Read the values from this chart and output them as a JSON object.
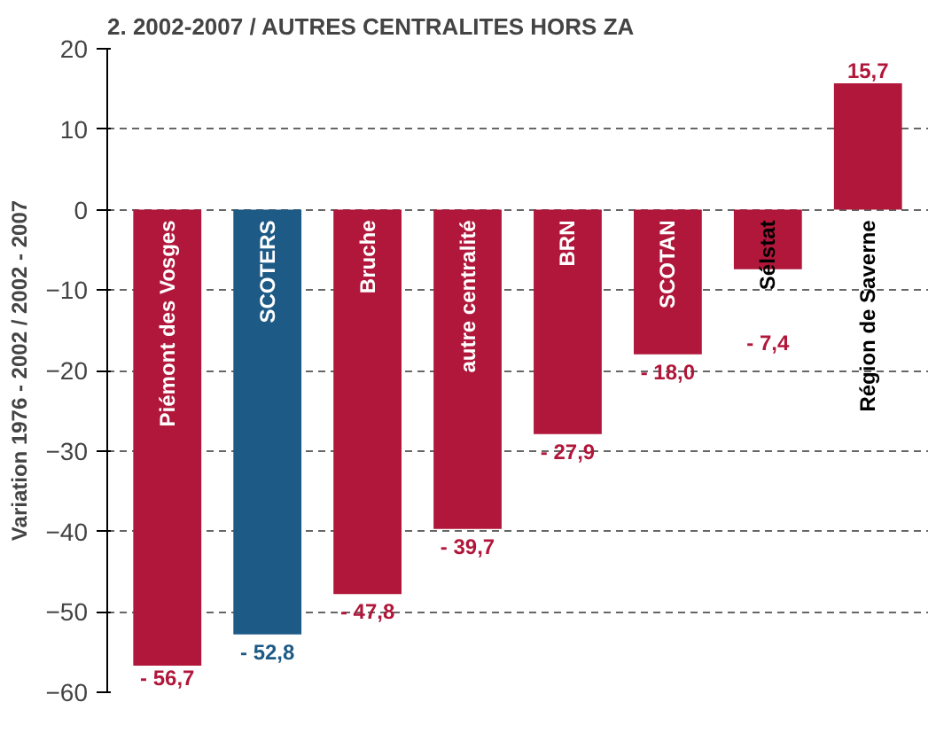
{
  "chart_data": {
    "type": "bar",
    "title": "2. 2002-2007 / AUTRES CENTRALITES HORS ZA",
    "ylabel": "Variation 1976 - 2002 / 2002 - 2007",
    "categories": [
      "Piémont des Vosges",
      "SCOTERS",
      "Bruche",
      "autre centralité",
      "BRN",
      "SCOTAN",
      "Sélstat",
      "Région de Saverne"
    ],
    "values": [
      -56.7,
      -52.8,
      -47.8,
      -39.7,
      -27.9,
      -18.0,
      -7.4,
      15.7
    ],
    "colors": [
      "#b0173a",
      "#1d5a86",
      "#b0173a",
      "#b0173a",
      "#b0173a",
      "#b0173a",
      "#b0173a",
      "#b0173a"
    ],
    "value_labels": [
      "- 56,7",
      "- 52,8",
      "- 47,8",
      "- 39,7",
      "- 27,9",
      "- 18,0",
      "- 7,4",
      "15,7"
    ],
    "ylim": [
      -60,
      20
    ],
    "yticks": [
      -60,
      -50,
      -40,
      -30,
      -20,
      -10,
      0,
      10,
      20
    ],
    "grid": "y"
  }
}
